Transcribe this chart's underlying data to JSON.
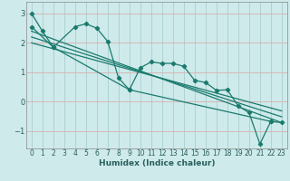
{
  "title": "",
  "xlabel": "Humidex (Indice chaleur)",
  "ylabel": "",
  "bg_color": "#ceeaea",
  "grid_color": "#aacfcf",
  "line_color": "#1a7a6e",
  "xlim": [
    -0.5,
    23.5
  ],
  "ylim": [
    -1.6,
    3.4
  ],
  "yticks": [
    -1,
    0,
    1,
    2,
    3
  ],
  "xticks": [
    0,
    1,
    2,
    3,
    4,
    5,
    6,
    7,
    8,
    9,
    10,
    11,
    12,
    13,
    14,
    15,
    16,
    17,
    18,
    19,
    20,
    21,
    22,
    23
  ],
  "series1_x": [
    0,
    1,
    2,
    4,
    5,
    6,
    7,
    8,
    9,
    10,
    11,
    12,
    13,
    14,
    15,
    16,
    17,
    18,
    19,
    20,
    21,
    22
  ],
  "series1_y": [
    3.0,
    2.4,
    1.85,
    2.55,
    2.65,
    2.5,
    2.05,
    0.8,
    0.4,
    1.15,
    1.35,
    1.3,
    1.3,
    1.2,
    0.72,
    0.65,
    0.38,
    0.4,
    -0.15,
    -0.38,
    -1.45,
    -0.68
  ],
  "series2_x": [
    0,
    2,
    9,
    22,
    23
  ],
  "series2_y": [
    2.55,
    1.85,
    0.4,
    -0.68,
    -0.72
  ],
  "series3_x": [
    0,
    23
  ],
  "series3_y": [
    2.4,
    -0.72
  ],
  "series4_x": [
    0,
    23
  ],
  "series4_y": [
    2.2,
    -0.52
  ],
  "series5_x": [
    0,
    23
  ],
  "series5_y": [
    2.0,
    -0.32
  ]
}
